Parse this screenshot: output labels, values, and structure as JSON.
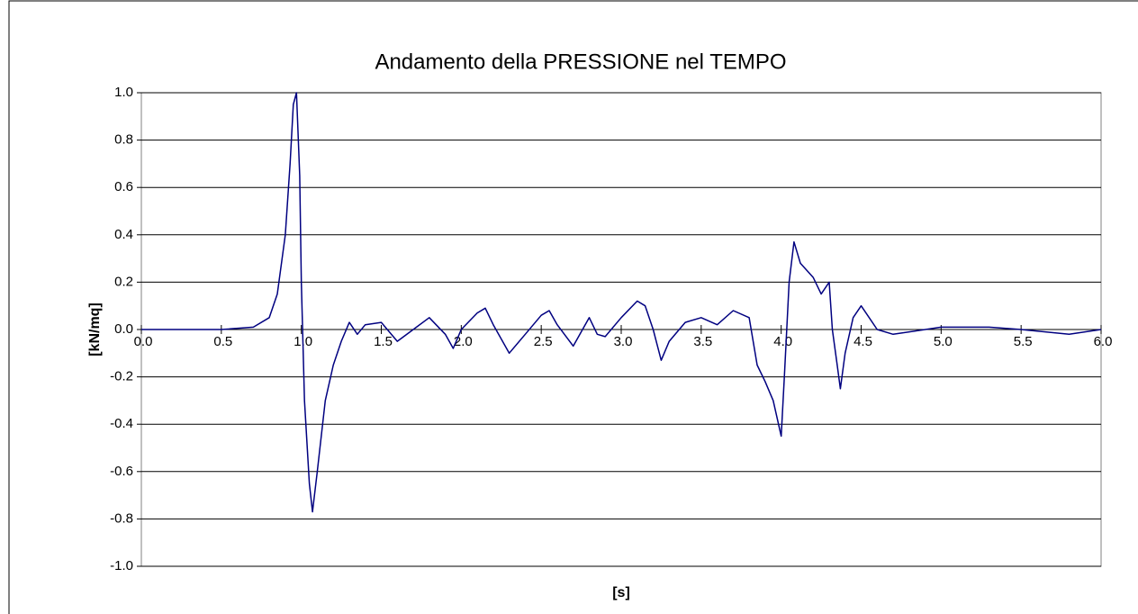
{
  "chart_data": {
    "type": "line",
    "title": "Andamento della PRESSIONE nel TEMPO",
    "x_label": "[s]",
    "y_label": "[kN/mq]",
    "color": "#000080",
    "grid": true,
    "x": [
      0,
      0.5,
      0.7,
      0.8,
      0.85,
      0.9,
      0.93,
      0.95,
      0.97,
      0.99,
      1.0,
      1.02,
      1.05,
      1.07,
      1.1,
      1.15,
      1.2,
      1.25,
      1.3,
      1.35,
      1.4,
      1.5,
      1.6,
      1.7,
      1.8,
      1.9,
      1.95,
      2.0,
      2.1,
      2.15,
      2.2,
      2.3,
      2.4,
      2.5,
      2.55,
      2.6,
      2.7,
      2.8,
      2.85,
      2.9,
      3.0,
      3.1,
      3.15,
      3.2,
      3.25,
      3.3,
      3.4,
      3.5,
      3.6,
      3.7,
      3.8,
      3.85,
      3.9,
      3.95,
      4.0,
      4.02,
      4.05,
      4.08,
      4.12,
      4.2,
      4.25,
      4.3,
      4.32,
      4.35,
      4.37,
      4.4,
      4.45,
      4.5,
      4.55,
      4.6,
      4.7,
      5.0,
      5.3,
      5.5,
      5.8,
      6.0
    ],
    "values": [
      0,
      0,
      0.01,
      0.05,
      0.15,
      0.4,
      0.7,
      0.95,
      1.0,
      0.65,
      0.2,
      -0.3,
      -0.65,
      -0.77,
      -0.6,
      -0.3,
      -0.15,
      -0.05,
      0.03,
      -0.02,
      0.02,
      0.03,
      -0.05,
      0.0,
      0.05,
      -0.02,
      -0.08,
      0.0,
      0.07,
      0.09,
      0.02,
      -0.1,
      -0.02,
      0.06,
      0.08,
      0.02,
      -0.07,
      0.05,
      -0.02,
      -0.03,
      0.05,
      0.12,
      0.1,
      0.0,
      -0.13,
      -0.05,
      0.03,
      0.05,
      0.02,
      0.08,
      0.05,
      -0.15,
      -0.22,
      -0.3,
      -0.45,
      -0.2,
      0.2,
      0.37,
      0.28,
      0.22,
      0.15,
      0.2,
      0.0,
      -0.15,
      -0.25,
      -0.1,
      0.05,
      0.1,
      0.05,
      0.0,
      -0.02,
      0.01,
      0.01,
      0.0,
      -0.02,
      0.0
    ],
    "xlim": [
      0,
      6
    ],
    "xticks": [
      {
        "value": 0,
        "label": "0.0"
      },
      0.5,
      {
        "value": 1,
        "label": "1.0"
      },
      1.5,
      {
        "value": 2,
        "label": "2.0"
      },
      2.5,
      {
        "value": 3,
        "label": "3.0"
      },
      3.5,
      {
        "value": 4,
        "label": "4.0"
      },
      4.5,
      {
        "value": 5,
        "label": "5.0"
      },
      5.5,
      {
        "value": 6,
        "label": "6.0"
      }
    ],
    "ylim": [
      -1,
      1
    ],
    "yticks": [
      {
        "value": 1,
        "label": "1.0"
      },
      0.8,
      0.6,
      0.4,
      0.2,
      {
        "value": 0,
        "label": "0.0"
      },
      -0.2,
      -0.4,
      -0.6,
      -0.8,
      {
        "value": -1,
        "label": "-1.0"
      }
    ]
  }
}
